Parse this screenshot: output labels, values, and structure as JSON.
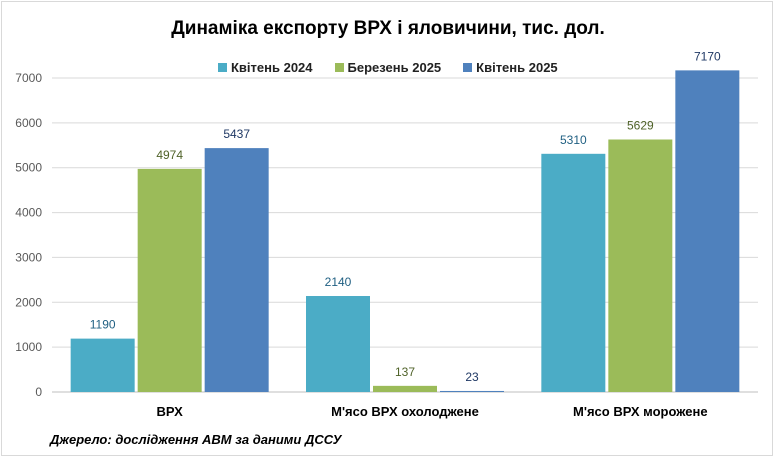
{
  "chart_data": {
    "type": "bar",
    "title": "Динаміка експорту ВРХ і яловичини, тис. дол.",
    "categories": [
      "ВРХ",
      "М'ясо ВРХ охолоджене",
      "М'ясо ВРХ морожене"
    ],
    "series": [
      {
        "name": "Квітень 2024",
        "color": "#4bacc6",
        "label_color": "#1f5f82",
        "values": [
          1190,
          2140,
          5310
        ]
      },
      {
        "name": "Березень 2025",
        "color": "#9bbb59",
        "label_color": "#4f6228",
        "values": [
          4974,
          137,
          5629
        ]
      },
      {
        "name": "Квітень 2025",
        "color": "#4f81bd",
        "label_color": "#1f3864",
        "values": [
          5437,
          23,
          7170
        ]
      }
    ],
    "ylim": [
      0,
      7000
    ],
    "yticks": [
      0,
      1000,
      2000,
      3000,
      4000,
      5000,
      6000,
      7000
    ],
    "grid": true,
    "legend_position": "top"
  },
  "source_note": "Джерело: дослідження АВМ за даними ДССУ"
}
